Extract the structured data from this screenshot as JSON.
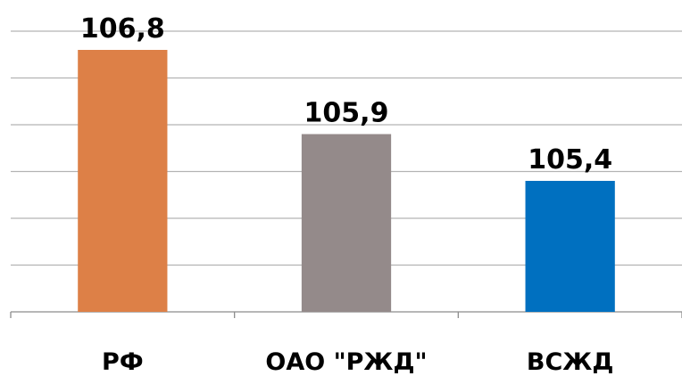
{
  "chart_data": {
    "type": "bar",
    "categories": [
      "РФ",
      "ОАО \"РЖД\"",
      "ВСЖД"
    ],
    "values": [
      106.8,
      105.9,
      105.4
    ],
    "value_labels": [
      "106,8",
      "105,9",
      "105,4"
    ],
    "colors": [
      "#dd8047",
      "#948a8a",
      "#0070c0"
    ],
    "title": "",
    "xlabel": "",
    "ylabel": "",
    "ylim": [
      104,
      107
    ],
    "grid": true,
    "legend": "none"
  }
}
